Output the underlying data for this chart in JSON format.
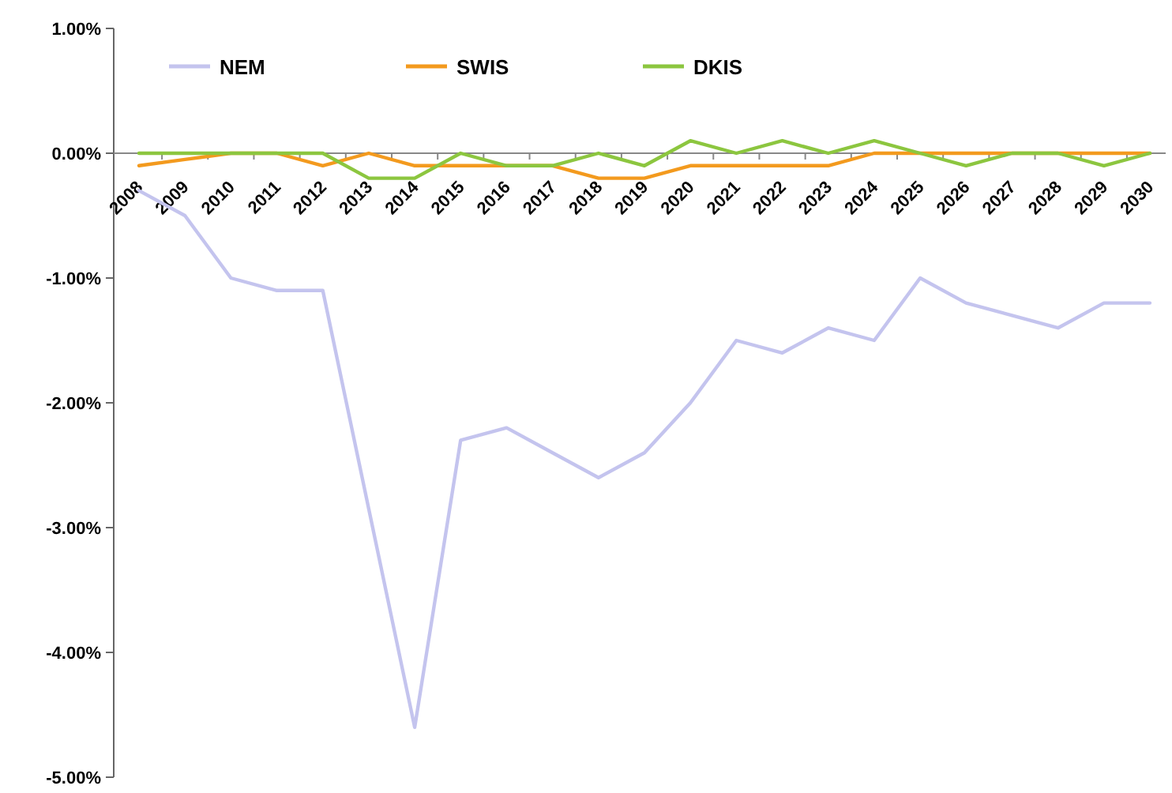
{
  "chart_data": {
    "type": "line",
    "categories": [
      "2008",
      "2009",
      "2010",
      "2011",
      "2012",
      "2013",
      "2014",
      "2015",
      "2016",
      "2017",
      "2018",
      "2019",
      "2020",
      "2021",
      "2022",
      "2023",
      "2024",
      "2025",
      "2026",
      "2027",
      "2028",
      "2029",
      "2030"
    ],
    "series": [
      {
        "name": "NEM",
        "color": "#c4c4ee",
        "values": [
          -0.3,
          -0.5,
          -1.0,
          -1.1,
          -1.1,
          -2.85,
          -4.6,
          -2.3,
          -2.2,
          -2.4,
          -2.6,
          -2.4,
          -2.0,
          -1.5,
          -1.6,
          -1.4,
          -1.5,
          -1.0,
          -1.2,
          -1.3,
          -1.4,
          -1.2,
          -1.2
        ]
      },
      {
        "name": "SWIS",
        "color": "#f39a1e",
        "values": [
          -0.1,
          -0.05,
          0,
          0,
          -0.1,
          0,
          -0.1,
          -0.1,
          -0.1,
          -0.1,
          -0.2,
          -0.2,
          -0.1,
          -0.1,
          -0.1,
          -0.1,
          0,
          0,
          0,
          0,
          0,
          0,
          0
        ]
      },
      {
        "name": "DKIS",
        "color": "#8cc63f",
        "values": [
          0,
          0,
          0,
          0,
          0,
          -0.2,
          -0.2,
          0,
          -0.1,
          -0.1,
          0,
          -0.1,
          0.1,
          0,
          0.1,
          0,
          0.1,
          0,
          -0.1,
          0,
          0,
          -0.1,
          0
        ]
      }
    ],
    "ylim": [
      -5,
      1
    ],
    "yticks": [
      {
        "value": -5,
        "label": "-5.00%"
      },
      {
        "value": -4,
        "label": "-4.00%"
      },
      {
        "value": -3,
        "label": "-3.00%"
      },
      {
        "value": -2,
        "label": "-2.00%"
      },
      {
        "value": -1,
        "label": "-1.00%"
      },
      {
        "value": 0,
        "label": "0.00%"
      },
      {
        "value": 1,
        "label": "1.00%"
      }
    ],
    "legend": "top left",
    "grid": false,
    "marker": "none",
    "line_style": "solid"
  }
}
